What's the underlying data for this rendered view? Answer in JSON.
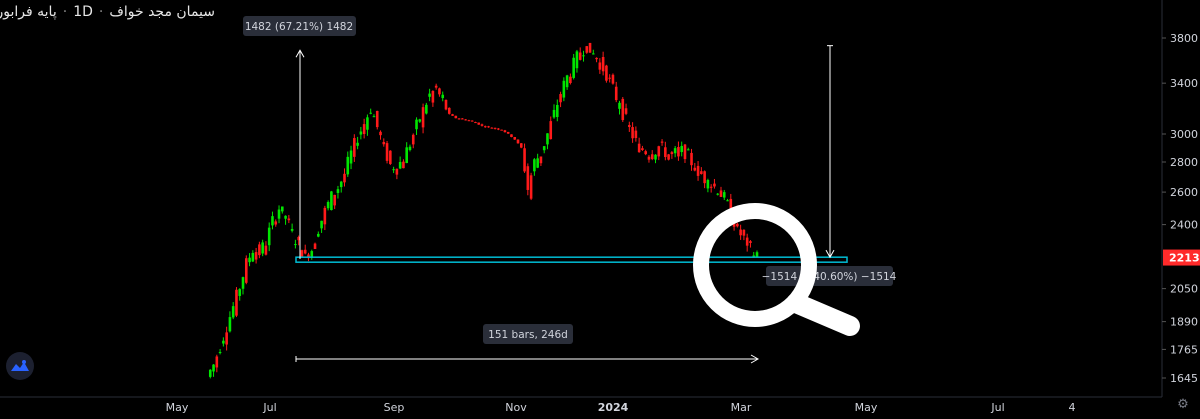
{
  "window": {
    "symbol_name": "سیمان مجد خواف",
    "interval": "1D",
    "market": "پایه فرابورس",
    "separator": "·"
  },
  "colors": {
    "background": "#000000",
    "up": "#00e600",
    "down": "#ff1a1a",
    "measure_box": "#00bcd4",
    "last_price_bg": "#ff2a2a",
    "magnifier": "#ffffff"
  },
  "icons": {
    "logo": "tradingview-logo-icon",
    "settings": "gear-icon",
    "magnifier": "search-icon"
  },
  "chart_data": {
    "type": "candlestick",
    "y_scale": "log",
    "price_axis_ticks": [
      3800,
      3400,
      3000,
      2800,
      2600,
      2400,
      2213,
      2050,
      1890,
      1765,
      1645
    ],
    "price_axis_labels": [
      "3800",
      "3400",
      "3000",
      "2800",
      "2600",
      "2400",
      "2050",
      "1890",
      "1765",
      "1645"
    ],
    "time_axis_labels": [
      "May",
      "Jul",
      "Sep",
      "Nov",
      "2024",
      "Mar",
      "May",
      "Jul",
      "4"
    ],
    "last_price": "2213",
    "measure_up_label": "1482 (67.21%) 1482",
    "measure_down_label": "−1514 (−40.60%) −1514",
    "measure_range_label": "151 bars, 246d",
    "measure": {
      "rise_from": 2205,
      "rise_to": 3687,
      "drop_from": 3729,
      "drop_to": 2215,
      "bars": 151,
      "days": 246
    },
    "support_zone": {
      "top": 2215,
      "bottom": 2195
    },
    "path_points": [
      [
        0,
        1650
      ],
      [
        2,
        1700
      ],
      [
        4,
        1780
      ],
      [
        6,
        1870
      ],
      [
        8,
        1960
      ],
      [
        10,
        2060
      ],
      [
        12,
        2180
      ],
      [
        14,
        2260
      ],
      [
        16,
        2240
      ],
      [
        18,
        2300
      ],
      [
        20,
        2420
      ],
      [
        22,
        2500
      ],
      [
        24,
        2440
      ],
      [
        26,
        2350
      ],
      [
        28,
        2280
      ],
      [
        30,
        2230
      ],
      [
        32,
        2260
      ],
      [
        34,
        2380
      ],
      [
        36,
        2480
      ],
      [
        38,
        2570
      ],
      [
        40,
        2630
      ],
      [
        42,
        2720
      ],
      [
        44,
        2860
      ],
      [
        46,
        2980
      ],
      [
        48,
        3080
      ],
      [
        50,
        3200
      ],
      [
        52,
        3050
      ],
      [
        54,
        2900
      ],
      [
        56,
        2780
      ],
      [
        58,
        2760
      ],
      [
        60,
        2830
      ],
      [
        62,
        2930
      ],
      [
        64,
        3060
      ],
      [
        66,
        3180
      ],
      [
        68,
        3300
      ],
      [
        70,
        3350
      ],
      [
        72,
        3250
      ],
      [
        74,
        3150
      ],
      [
        76,
        3120
      ],
      [
        78,
        3110
      ],
      [
        80,
        3100
      ],
      [
        82,
        3085
      ],
      [
        84,
        3060
      ],
      [
        86,
        3050
      ],
      [
        88,
        3040
      ],
      [
        90,
        3030
      ],
      [
        92,
        3000
      ],
      [
        94,
        2960
      ],
      [
        96,
        2900
      ],
      [
        98,
        2620
      ],
      [
        100,
        2800
      ],
      [
        102,
        2860
      ],
      [
        104,
        3000
      ],
      [
        106,
        3150
      ],
      [
        108,
        3320
      ],
      [
        110,
        3450
      ],
      [
        112,
        3560
      ],
      [
        114,
        3680
      ],
      [
        116,
        3729
      ],
      [
        118,
        3650
      ],
      [
        120,
        3570
      ],
      [
        122,
        3480
      ],
      [
        124,
        3350
      ],
      [
        126,
        3220
      ],
      [
        128,
        3100
      ],
      [
        130,
        2990
      ],
      [
        132,
        2900
      ],
      [
        134,
        2880
      ],
      [
        136,
        2860
      ],
      [
        138,
        2910
      ],
      [
        140,
        2870
      ],
      [
        142,
        2840
      ],
      [
        144,
        2880
      ],
      [
        146,
        2870
      ],
      [
        148,
        2800
      ],
      [
        150,
        2740
      ],
      [
        152,
        2690
      ],
      [
        154,
        2650
      ],
      [
        156,
        2620
      ],
      [
        158,
        2560
      ],
      [
        160,
        2470
      ],
      [
        162,
        2370
      ],
      [
        164,
        2320
      ],
      [
        166,
        2260
      ],
      [
        168,
        2213
      ]
    ]
  }
}
